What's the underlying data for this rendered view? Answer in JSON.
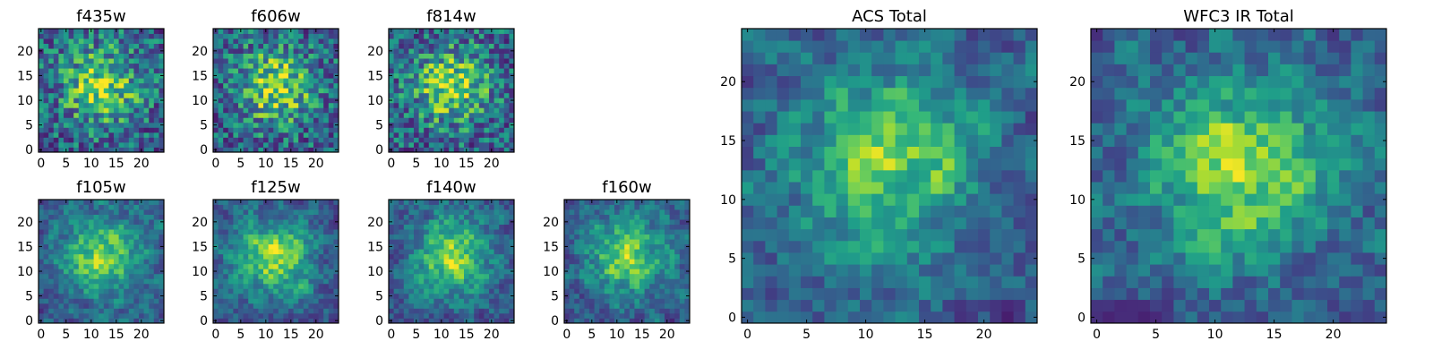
{
  "chart_data": [
    {
      "type": "heatmap",
      "title": "f435w",
      "xlim": [
        0,
        24
      ],
      "ylim": [
        0,
        24
      ],
      "xticks": [
        "0",
        "5",
        "10",
        "15",
        "20"
      ],
      "yticks": [
        "0",
        "5",
        "10",
        "15",
        "20"
      ],
      "colormap": "viridis",
      "seed": 11
    },
    {
      "type": "heatmap",
      "title": "f606w",
      "xlim": [
        0,
        24
      ],
      "ylim": [
        0,
        24
      ],
      "xticks": [
        "0",
        "5",
        "10",
        "15",
        "20"
      ],
      "yticks": [
        "0",
        "5",
        "10",
        "15",
        "20"
      ],
      "colormap": "viridis",
      "seed": 23
    },
    {
      "type": "heatmap",
      "title": "f814w",
      "xlim": [
        0,
        24
      ],
      "ylim": [
        0,
        24
      ],
      "xticks": [
        "0",
        "5",
        "10",
        "15",
        "20"
      ],
      "yticks": [
        "0",
        "5",
        "10",
        "15",
        "20"
      ],
      "colormap": "viridis",
      "seed": 37
    },
    {
      "type": "heatmap",
      "title": "f105w",
      "xlim": [
        0,
        24
      ],
      "ylim": [
        0,
        24
      ],
      "xticks": [
        "0",
        "5",
        "10",
        "15",
        "20"
      ],
      "yticks": [
        "0",
        "5",
        "10",
        "15",
        "20"
      ],
      "colormap": "viridis",
      "seed": 41
    },
    {
      "type": "heatmap",
      "title": "f125w",
      "xlim": [
        0,
        24
      ],
      "ylim": [
        0,
        24
      ],
      "xticks": [
        "0",
        "5",
        "10",
        "15",
        "20"
      ],
      "yticks": [
        "0",
        "5",
        "10",
        "15",
        "20"
      ],
      "colormap": "viridis",
      "seed": 53
    },
    {
      "type": "heatmap",
      "title": "f140w",
      "xlim": [
        0,
        24
      ],
      "ylim": [
        0,
        24
      ],
      "xticks": [
        "0",
        "5",
        "10",
        "15",
        "20"
      ],
      "yticks": [
        "0",
        "5",
        "10",
        "15",
        "20"
      ],
      "colormap": "viridis",
      "seed": 67
    },
    {
      "type": "heatmap",
      "title": "f160w",
      "xlim": [
        0,
        24
      ],
      "ylim": [
        0,
        24
      ],
      "xticks": [
        "0",
        "5",
        "10",
        "15",
        "20"
      ],
      "yticks": [
        "0",
        "5",
        "10",
        "15",
        "20"
      ],
      "colormap": "viridis",
      "seed": 79
    },
    {
      "type": "heatmap",
      "title": "ACS Total",
      "xlim": [
        0,
        24
      ],
      "ylim": [
        0,
        24
      ],
      "xticks": [
        "0",
        "5",
        "10",
        "15",
        "20"
      ],
      "yticks": [
        "0",
        "5",
        "10",
        "15",
        "20"
      ],
      "colormap": "viridis",
      "seed": 83
    },
    {
      "type": "heatmap",
      "title": "WFC3 IR Total",
      "xlim": [
        0,
        24
      ],
      "ylim": [
        0,
        24
      ],
      "xticks": [
        "0",
        "5",
        "10",
        "15",
        "20"
      ],
      "yticks": [
        "0",
        "5",
        "10",
        "15",
        "20"
      ],
      "colormap": "viridis",
      "seed": 97
    }
  ],
  "colors": {
    "viridis_low": "#440154",
    "viridis_mid": "#21918c",
    "viridis_high": "#fde725"
  }
}
